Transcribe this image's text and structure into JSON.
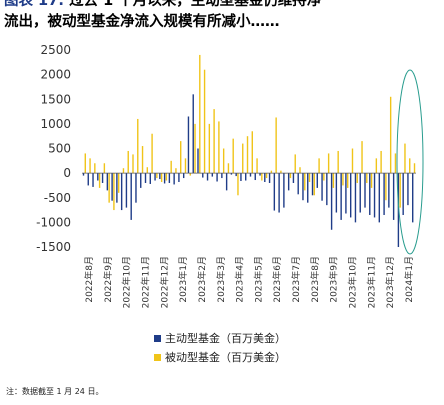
{
  "title": {
    "label": "图表 17:",
    "line1": "过去 1 个月以来，主动型基金仍维持净",
    "line2": "流出，被动型基金净流入规模有所减小……"
  },
  "note": "注：数据截至 1 月 24 日。",
  "colors": {
    "series1": "#1f3c88",
    "series2": "#f0c419",
    "ellipse": "#2a9d8f"
  },
  "chart_data": {
    "type": "bar",
    "ylim": [
      -1500,
      2500
    ],
    "yticks": [
      -1500,
      -1000,
      -500,
      0,
      500,
      1000,
      1500,
      2000,
      2500
    ],
    "xtick_labels": [
      "2022年8月",
      "2022年9月",
      "2022年10月",
      "2022年11月",
      "2022年12月",
      "2023年1月",
      "2023年2月",
      "2023年3月",
      "2023年4月",
      "2023年5月",
      "2023年6月",
      "2023年7月",
      "2023年8月",
      "2023年9月",
      "2023年10月",
      "2023年11月",
      "2023年12月",
      "2024年1月"
    ],
    "legend": [
      "主动型基金（百万美金）",
      "被动型基金（百万美金）"
    ],
    "series": [
      {
        "name": "主动型基金（百万美金）",
        "values": [
          -50,
          -250,
          -280,
          -150,
          -200,
          -350,
          -560,
          -600,
          -750,
          -700,
          -950,
          -600,
          -300,
          -200,
          -220,
          -150,
          -120,
          -210,
          -200,
          -230,
          -180,
          -100,
          1150,
          1600,
          500,
          -90,
          -150,
          -70,
          -170,
          -100,
          -350,
          -30,
          -60,
          -160,
          -150,
          -70,
          -140,
          -50,
          -180,
          -200,
          -760,
          -800,
          -700,
          -350,
          -200,
          -430,
          -550,
          -600,
          -450,
          -300,
          -560,
          -650,
          -1150,
          -800,
          -950,
          -820,
          -900,
          -1000,
          -800,
          -700,
          -850,
          -900,
          -1000,
          -850,
          -700,
          -950,
          -1500,
          -850,
          -650,
          -1000
        ]
      },
      {
        "name": "被动型基金（百万美金）",
        "values": [
          400,
          300,
          200,
          -300,
          200,
          -600,
          -750,
          -400,
          100,
          450,
          380,
          1100,
          550,
          120,
          800,
          -100,
          -180,
          -150,
          250,
          100,
          650,
          300,
          -50,
          1000,
          2400,
          2100,
          1000,
          1300,
          1050,
          500,
          200,
          700,
          -450,
          600,
          750,
          850,
          300,
          -150,
          -100,
          50,
          1130,
          50,
          0,
          -100,
          380,
          120,
          -350,
          -180,
          -450,
          300,
          -150,
          400,
          -300,
          450,
          -250,
          -300,
          500,
          -200,
          650,
          -200,
          -300,
          300,
          450,
          -550,
          1550,
          400,
          -700,
          600,
          300,
          200
        ]
      }
    ]
  }
}
